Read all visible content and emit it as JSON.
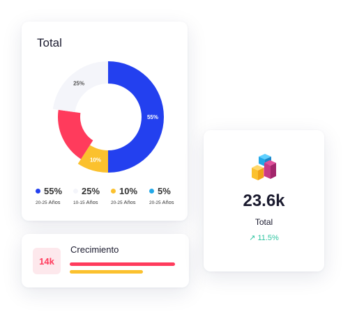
{
  "total_card": {
    "title": "Total",
    "segments": [
      {
        "label": "55%",
        "value": 55,
        "color": "#2340ef"
      },
      {
        "label": "10%",
        "value": 10,
        "color": "#fbc12e"
      },
      {
        "label": "",
        "value": 20,
        "color": "#ff3b5c"
      },
      {
        "label": "25%",
        "value": 25,
        "color": "#f4f5fa"
      }
    ],
    "legend": [
      {
        "pct": "55%",
        "range": "20-25",
        "unit": "Años",
        "color": "#2340ef"
      },
      {
        "pct": "25%",
        "range": "10-15",
        "unit": "Años",
        "color": "#f4f5fa"
      },
      {
        "pct": "10%",
        "range": "20-25",
        "unit": "Años",
        "color": "#fbc12e"
      },
      {
        "pct": "5%",
        "range": "20-25",
        "unit": "Años",
        "color": "#22a8e8"
      }
    ]
  },
  "growth_card": {
    "badge": "14k",
    "title": "Crecimiento",
    "bar_colors": [
      "#ff3b5c",
      "#fbc12e"
    ]
  },
  "stat_card": {
    "icon": "cubes-icon",
    "value": "23.6k",
    "label": "Total",
    "change": "11.5%",
    "change_icon": "arrow-up-right-icon",
    "change_color": "#2ec4a0"
  }
}
